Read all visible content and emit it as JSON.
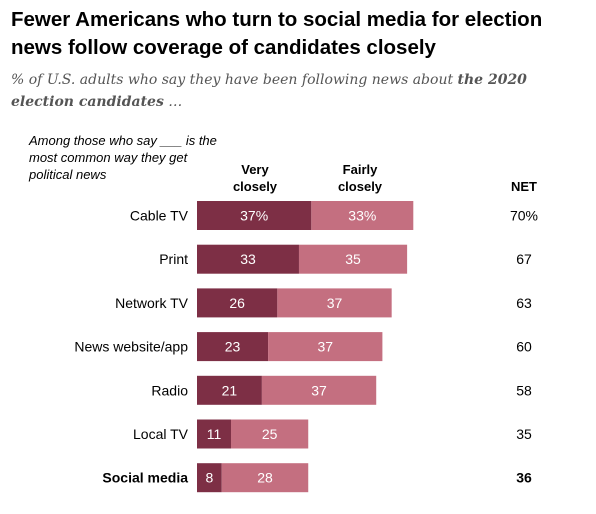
{
  "title": "Fewer Americans who turn to social media for election news follow coverage of candidates closely",
  "subtitle_prefix": "% of U.S. adults who say they have been following news about ",
  "subtitle_bold": "the 2020 election candidates",
  "subtitle_suffix": " …",
  "note": "Among those who say ___ is the most common way they get political news",
  "chart_data": {
    "type": "bar",
    "orientation": "horizontal",
    "stacked": true,
    "categories": [
      "Cable TV",
      "Print",
      "Network TV",
      "News website/app",
      "Radio",
      "Local TV",
      "Social media"
    ],
    "series": [
      {
        "name": "Very closely",
        "values": [
          37,
          33,
          26,
          23,
          21,
          11,
          8
        ],
        "labels": [
          "37%",
          "33",
          "26",
          "23",
          "21",
          "11",
          "8"
        ],
        "color": "#7d2f45"
      },
      {
        "name": "Fairly closely",
        "values": [
          33,
          35,
          37,
          37,
          37,
          25,
          28
        ],
        "labels": [
          "33%",
          "35",
          "37",
          "37",
          "37",
          "25",
          "28"
        ],
        "color": "#c46f80"
      }
    ],
    "net_header": "NET",
    "net": [
      "70%",
      "67",
      "63",
      "60",
      "58",
      "35",
      "36"
    ],
    "highlight_category": "Social media"
  }
}
